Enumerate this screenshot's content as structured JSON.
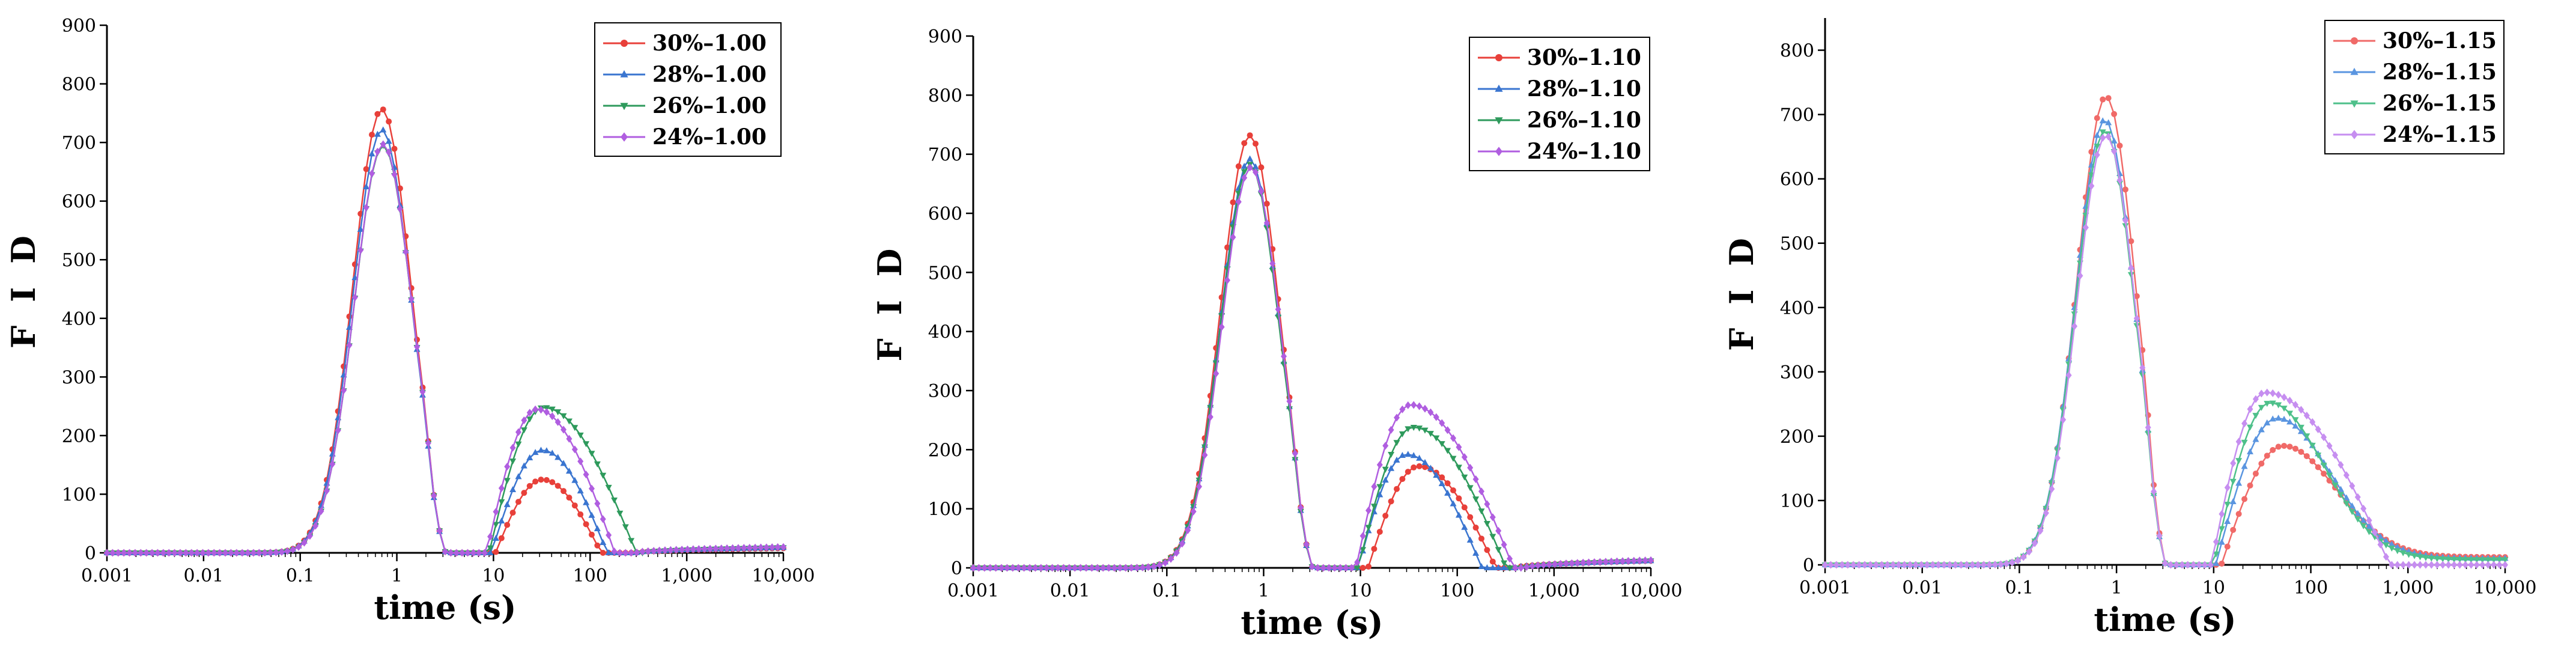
{
  "chart_data": [
    {
      "type": "line",
      "xscale": "log",
      "xlim": [
        0.001,
        10000
      ],
      "ylim": [
        0,
        900
      ],
      "yticks": [
        0,
        100,
        200,
        300,
        400,
        500,
        600,
        700,
        800,
        900
      ],
      "xtick_values": [
        0.001,
        0.01,
        0.1,
        1,
        10,
        100,
        1000,
        10000
      ],
      "xtick_labels": [
        "0.001",
        "0.01",
        "0.1",
        "1",
        "10",
        "100",
        "1,000",
        "10,000"
      ],
      "xlabel": "time (s)",
      "ylabel": "F I D",
      "legend_position": "top-right",
      "series": [
        {
          "name": "30%–1.00",
          "color": "#e8403a",
          "marker": "circle",
          "p1": {
            "amp": 757,
            "center": 0.7
          },
          "p2": {
            "amp": 125,
            "center": 32,
            "start": 10.5,
            "end": 130
          },
          "tail": {
            "from": 300,
            "amp": 8
          }
        },
        {
          "name": "28%–1.00",
          "color": "#3a75d0",
          "marker": "triangle-up",
          "p1": {
            "amp": 722,
            "center": 0.7
          },
          "p2": {
            "amp": 175,
            "center": 32,
            "start": 9.5,
            "end": 150
          },
          "tail": {
            "from": 300,
            "amp": 9
          }
        },
        {
          "name": "26%–1.00",
          "color": "#2e9a5c",
          "marker": "triangle-down",
          "p1": {
            "amp": 695,
            "center": 0.72
          },
          "p2": {
            "amp": 248,
            "center": 33,
            "start": 9,
            "end": 300
          },
          "tail": {
            "from": 350,
            "amp": 9
          }
        },
        {
          "name": "24%–1.00",
          "color": "#b05ee0",
          "marker": "diamond",
          "p1": {
            "amp": 697,
            "center": 0.72
          },
          "p2": {
            "amp": 245,
            "center": 28,
            "start": 8.5,
            "end": 180
          },
          "tail": {
            "from": 300,
            "amp": 10
          }
        }
      ]
    },
    {
      "type": "line",
      "xscale": "log",
      "xlim": [
        0.001,
        10000
      ],
      "ylim": [
        0,
        900
      ],
      "yticks": [
        0,
        100,
        200,
        300,
        400,
        500,
        600,
        700,
        800,
        900
      ],
      "xtick_values": [
        0.001,
        0.01,
        0.1,
        1,
        10,
        100,
        1000,
        10000
      ],
      "xtick_labels": [
        "0.001",
        "0.01",
        "0.1",
        "1",
        "10",
        "100",
        "1,000",
        "10,000"
      ],
      "xlabel": "time (s)",
      "ylabel": "F I D",
      "legend_position": "top-right",
      "series": [
        {
          "name": "30%–1.10",
          "color": "#e8403a",
          "marker": "circle",
          "p1": {
            "amp": 732,
            "center": 0.72
          },
          "p2": {
            "amp": 172,
            "center": 40,
            "start": 12,
            "end": 250
          },
          "tail": {
            "from": 400,
            "amp": 12
          }
        },
        {
          "name": "28%–1.10",
          "color": "#3a75d0",
          "marker": "triangle-up",
          "p1": {
            "amp": 692,
            "center": 0.72
          },
          "p2": {
            "amp": 192,
            "center": 30,
            "start": 9.5,
            "end": 180
          },
          "tail": {
            "from": 400,
            "amp": 12
          }
        },
        {
          "name": "26%–1.10",
          "color": "#2e9a5c",
          "marker": "triangle-down",
          "p1": {
            "amp": 683,
            "center": 0.72
          },
          "p2": {
            "amp": 238,
            "center": 35,
            "start": 9.5,
            "end": 320
          },
          "tail": {
            "from": 500,
            "amp": 12
          }
        },
        {
          "name": "24%–1.10",
          "color": "#b05ee0",
          "marker": "diamond",
          "p1": {
            "amp": 678,
            "center": 0.74
          },
          "p2": {
            "amp": 276,
            "center": 33,
            "start": 9,
            "end": 380
          },
          "tail": {
            "from": 500,
            "amp": 13
          }
        }
      ]
    },
    {
      "type": "line",
      "xscale": "log",
      "xlim": [
        0.001,
        10000
      ],
      "ylim": [
        0,
        850
      ],
      "yticks": [
        0,
        100,
        200,
        300,
        400,
        500,
        600,
        700,
        800
      ],
      "xtick_values": [
        0.001,
        0.01,
        0.1,
        1,
        10,
        100,
        1000,
        10000
      ],
      "xtick_labels": [
        "0.001",
        "0.01",
        "0.1",
        "1",
        "10",
        "100",
        "1,000",
        "10,000"
      ],
      "xlabel": "time (s)",
      "ylabel": "F I D",
      "legend_position": "top-right",
      "series": [
        {
          "name": "30%–1.15",
          "color": "#f06a68",
          "marker": "circle",
          "p1": {
            "amp": 728,
            "center": 0.78
          },
          "p2": {
            "amp": 185,
            "center": 52,
            "start": 12,
            "decayTo": 12
          }
        },
        {
          "name": "28%–1.15",
          "color": "#5a95e0",
          "marker": "triangle-up",
          "p1": {
            "amp": 692,
            "center": 0.76
          },
          "p2": {
            "amp": 228,
            "center": 45,
            "start": 10.5,
            "decayTo": 10
          }
        },
        {
          "name": "26%–1.15",
          "color": "#4ec08a",
          "marker": "triangle-down",
          "p1": {
            "amp": 675,
            "center": 0.76
          },
          "p2": {
            "amp": 252,
            "center": 38,
            "start": 10,
            "decayTo": 8
          }
        },
        {
          "name": "24%–1.15",
          "color": "#c68ef0",
          "marker": "diamond",
          "p1": {
            "amp": 668,
            "center": 0.78
          },
          "p2": {
            "amp": 268,
            "center": 34,
            "start": 9.5,
            "end": 650
          }
        }
      ]
    }
  ]
}
